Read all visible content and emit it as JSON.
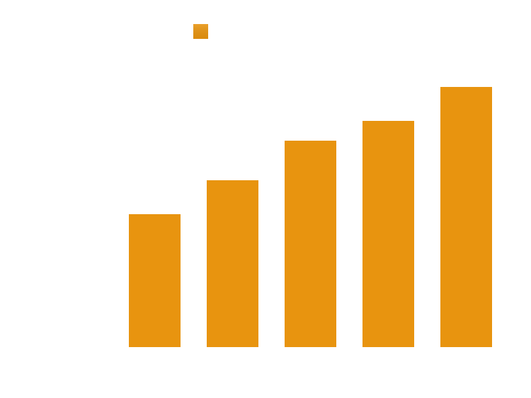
{
  "chart_data": {
    "type": "bar",
    "categories": [
      null,
      null,
      null,
      null,
      null
    ],
    "values": [
      188,
      236,
      292,
      320,
      368
    ],
    "color": "#e8940f",
    "ylim": [
      0,
      400
    ]
  }
}
